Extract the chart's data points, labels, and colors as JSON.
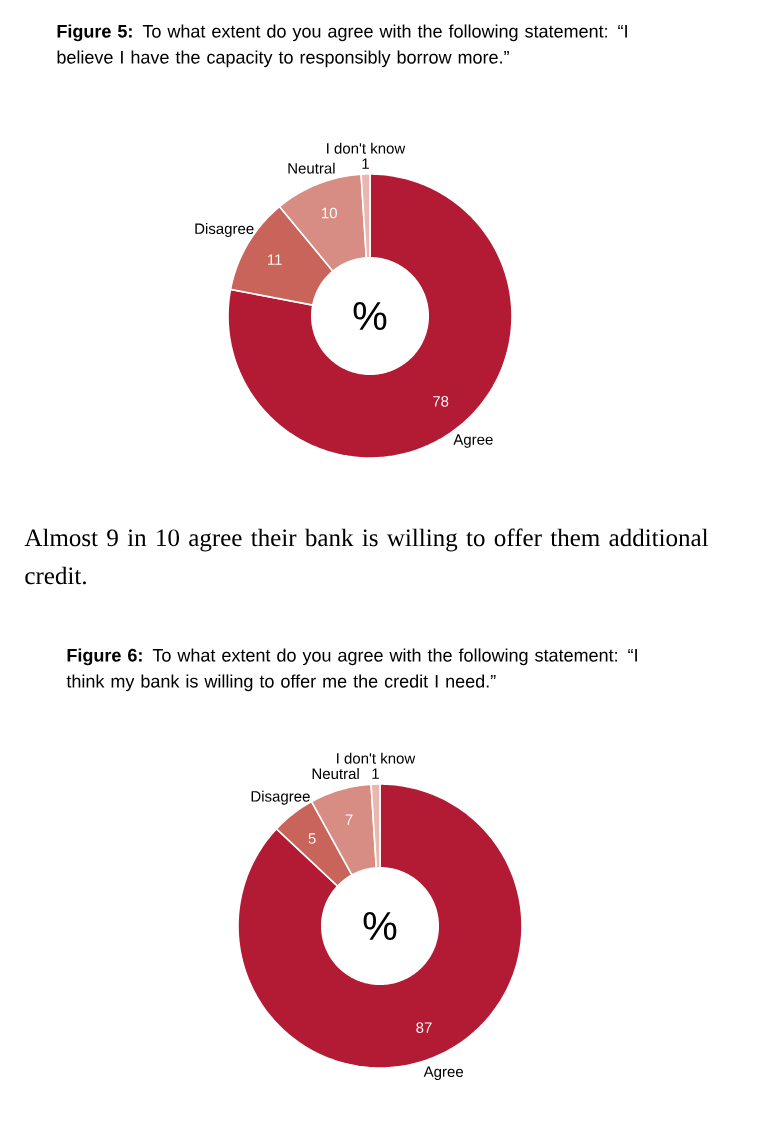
{
  "chart_data": [
    {
      "type": "donut",
      "title": "**Figure 5:** To what extent do you agree with the following statement: “I believe I have the capacity to responsibly borrow more.”",
      "categories": [
        "Agree",
        "Disagree",
        "Neutral",
        "I don't know"
      ],
      "values": [
        78,
        11,
        10,
        1
      ],
      "colors": [
        "#b31b34",
        "#c8645a",
        "#d88d84",
        "#e8b8b0"
      ],
      "data_labels": true,
      "annotations": [
        "%"
      ]
    },
    {
      "type": "donut",
      "title": "**Figure 6:** To what extent do you agree with the following statement: “I think my bank is willing to offer me the credit I need.”",
      "categories": [
        "Agree",
        "Disagree",
        "Neutral",
        "I don't know"
      ],
      "values": [
        87,
        5,
        7,
        1
      ],
      "colors": [
        "#b31b34",
        "#c8645a",
        "#d88d84",
        "#e8b8b0"
      ],
      "data_labels": true,
      "annotations": [
        "Almost 9 in 10 agree their bank is willing to offer them additional credit.",
        "%"
      ]
    }
  ]
}
